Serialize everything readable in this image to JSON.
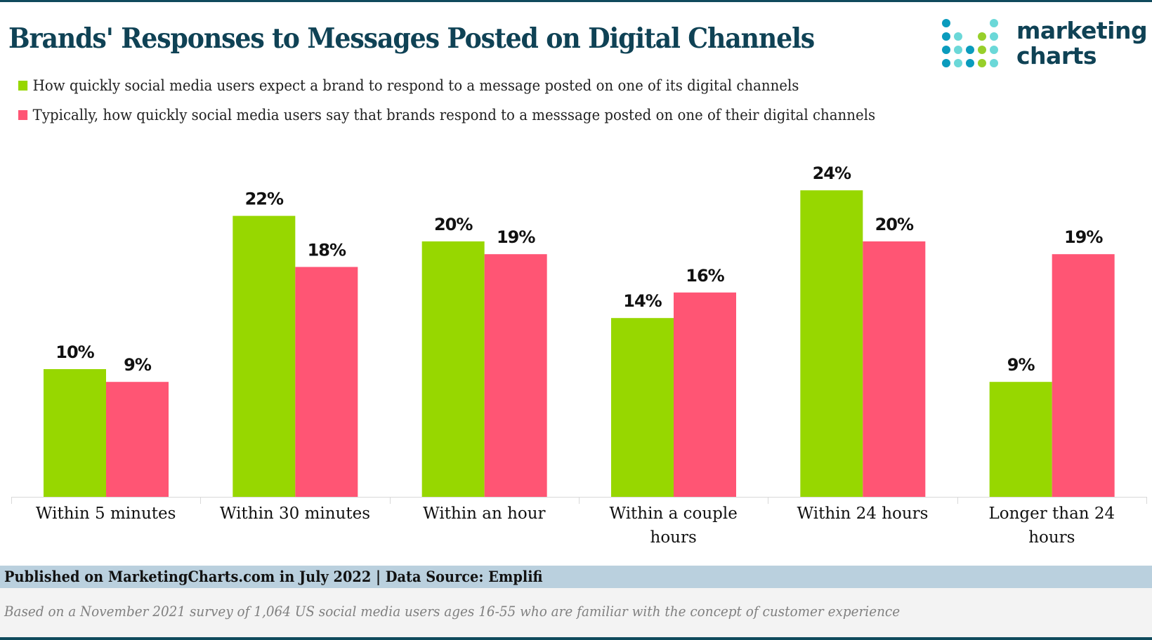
{
  "header": {
    "title": "Brands' Responses to Messages Posted on Digital Channels",
    "logo_line1": "marketing",
    "logo_line2": "charts"
  },
  "legend": [
    {
      "label": "How quickly social media users expect a brand to respond to a message posted on one of its digital channels",
      "color": "#97d700"
    },
    {
      "label": "Typically, how quickly social media users say that brands respond to a messsage posted on one of their digital channels",
      "color": "#ff5574"
    }
  ],
  "footer": {
    "source": "Published on MarketingCharts.com in July 2022 | Data Source: Emplifi",
    "note": "Based on a November 2021 survey of 1,064 US social media users ages 16-55 who are familiar with the concept of customer experience"
  },
  "colors": {
    "title": "#0f4255",
    "series1": "#97d700",
    "series2": "#ff5574",
    "logo_dark": "#0a9bbd",
    "logo_light": "#6bd8d8",
    "logo_green": "#97cf2a"
  },
  "chart_data": {
    "type": "bar",
    "title": "Brands' Responses to Messages Posted on Digital Channels",
    "xlabel": "",
    "ylabel": "",
    "ylim": [
      0,
      24
    ],
    "grid": false,
    "legend_position": "top-left",
    "categories": [
      [
        "Within 5 minutes"
      ],
      [
        "Within 30 minutes"
      ],
      [
        "Within an hour"
      ],
      [
        "Within a couple",
        "hours"
      ],
      [
        "Within 24 hours"
      ],
      [
        "Longer than 24",
        "hours"
      ]
    ],
    "series": [
      {
        "name": "How quickly social media users expect a brand to respond to a message posted on one of its digital channels",
        "color": "#97d700",
        "values": [
          10,
          22,
          20,
          14,
          24,
          9
        ],
        "labels": [
          "10%",
          "22%",
          "20%",
          "14%",
          "24%",
          "9%"
        ]
      },
      {
        "name": "Typically, how quickly social media users say that brands respond to a messsage posted on one of their digital channels",
        "color": "#ff5574",
        "values": [
          9,
          18,
          19,
          16,
          20,
          19
        ],
        "labels": [
          "9%",
          "18%",
          "19%",
          "16%",
          "20%",
          "19%"
        ]
      }
    ]
  }
}
